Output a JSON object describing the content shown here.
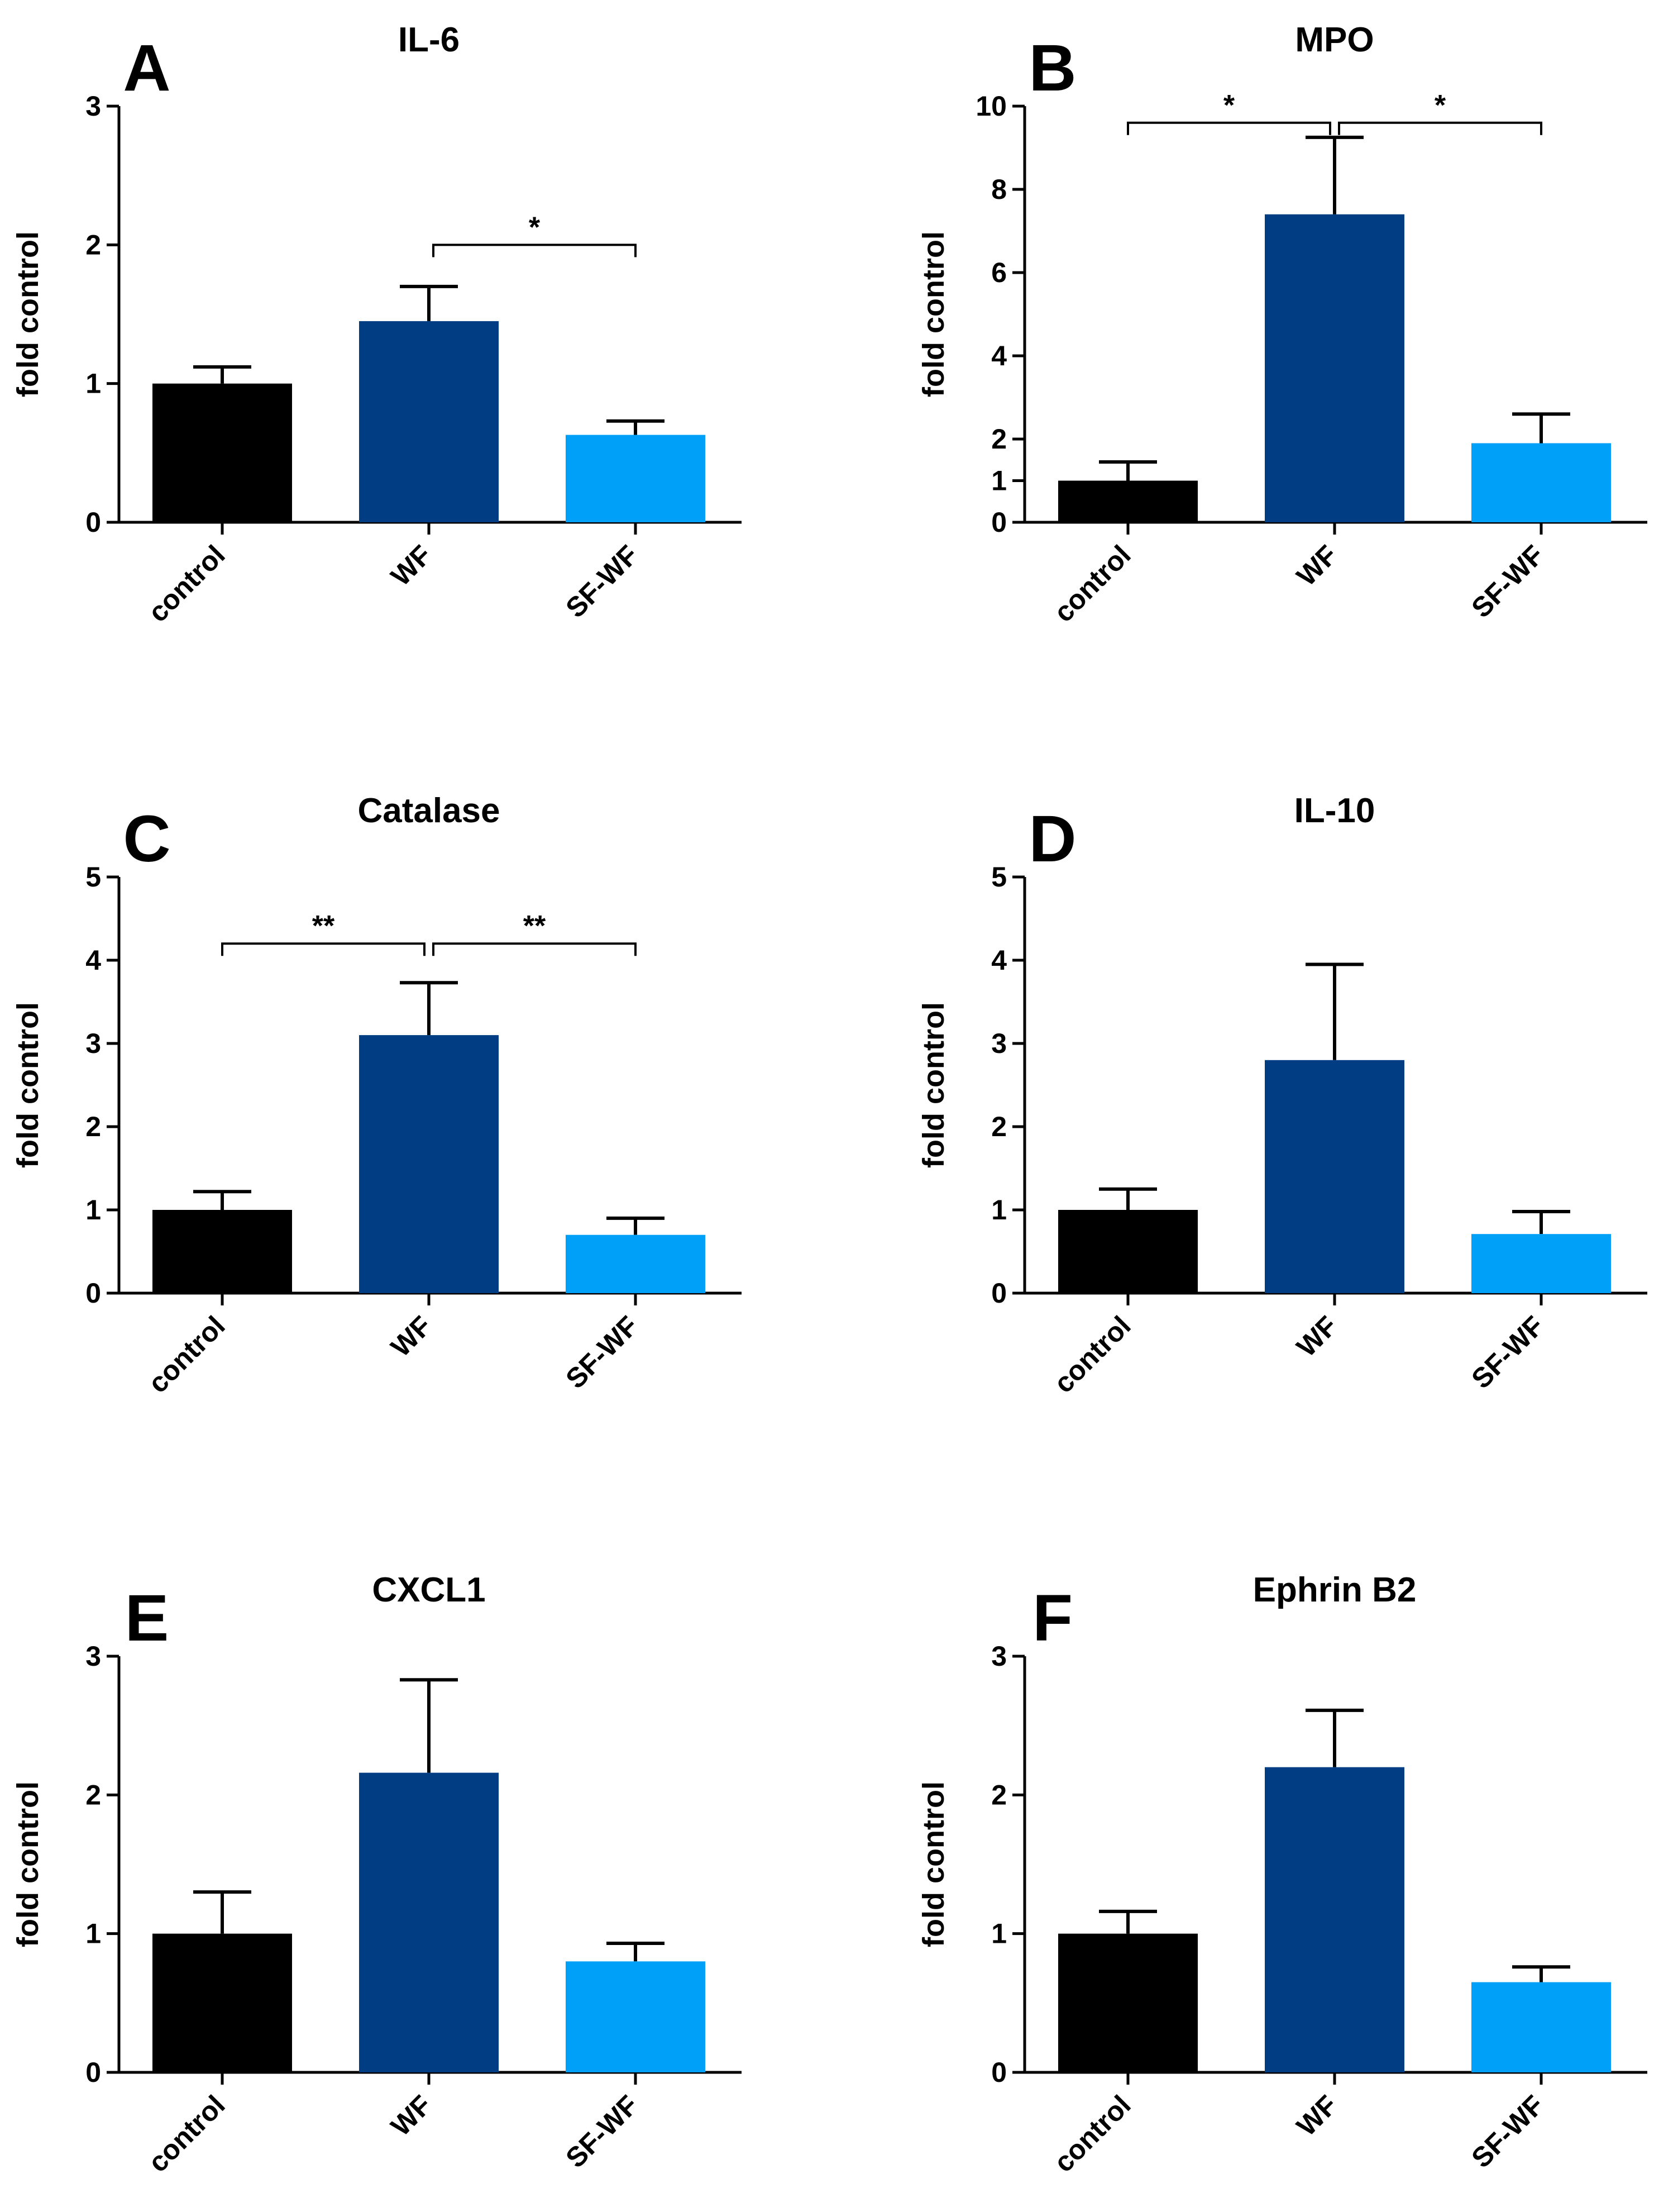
{
  "figure": {
    "y_axis_label": "fold control",
    "colors": {
      "control": "#000000",
      "WF": "#003d82",
      "SF-WF": "#00a0f8"
    }
  },
  "chart_data": [
    {
      "type": "bar",
      "panel": "A",
      "title": "IL-6",
      "ylabel": "fold control",
      "xlabel": "",
      "categories": [
        "control",
        "WF",
        "SF-WF"
      ],
      "values": [
        1.0,
        1.45,
        0.63
      ],
      "errors": [
        0.12,
        0.25,
        0.1
      ],
      "ylim": [
        0,
        3
      ],
      "yticks": [
        0,
        1,
        2,
        3
      ],
      "significance": [
        {
          "from": 1,
          "to": 2,
          "label": "*",
          "y": 2.0
        }
      ]
    },
    {
      "type": "bar",
      "panel": "B",
      "title": "MPO",
      "ylabel": "fold control",
      "xlabel": "",
      "categories": [
        "control",
        "WF",
        "SF-WF"
      ],
      "values": [
        1.0,
        7.4,
        1.9
      ],
      "errors": [
        0.45,
        1.85,
        0.7
      ],
      "ylim": [
        0,
        10
      ],
      "yticks": [
        0,
        1,
        2,
        4,
        6,
        8,
        10
      ],
      "significance": [
        {
          "from": 0,
          "to": 1,
          "label": "*",
          "y": 9.6
        },
        {
          "from": 1,
          "to": 2,
          "label": "*",
          "y": 9.6
        }
      ]
    },
    {
      "type": "bar",
      "panel": "C",
      "title": "Catalase",
      "ylabel": "fold control",
      "xlabel": "",
      "categories": [
        "control",
        "WF",
        "SF-WF"
      ],
      "values": [
        1.0,
        3.1,
        0.7
      ],
      "errors": [
        0.22,
        0.63,
        0.2
      ],
      "ylim": [
        0,
        5
      ],
      "yticks": [
        0,
        1,
        2,
        3,
        4,
        5
      ],
      "significance": [
        {
          "from": 0,
          "to": 1,
          "label": "**",
          "y": 4.2
        },
        {
          "from": 1,
          "to": 2,
          "label": "**",
          "y": 4.2
        }
      ]
    },
    {
      "type": "bar",
      "panel": "D",
      "title": "IL-10",
      "ylabel": "fold control",
      "xlabel": "",
      "categories": [
        "control",
        "WF",
        "SF-WF"
      ],
      "values": [
        1.0,
        2.8,
        0.71
      ],
      "errors": [
        0.25,
        1.15,
        0.27
      ],
      "ylim": [
        0,
        5
      ],
      "yticks": [
        0,
        1,
        2,
        3,
        4,
        5
      ],
      "significance": []
    },
    {
      "type": "bar",
      "panel": "E",
      "title": "CXCL1",
      "ylabel": "fold control",
      "xlabel": "",
      "categories": [
        "control",
        "WF",
        "SF-WF"
      ],
      "values": [
        1.0,
        2.16,
        0.8
      ],
      "errors": [
        0.3,
        0.67,
        0.13
      ],
      "ylim": [
        0,
        3
      ],
      "yticks": [
        0,
        1,
        2,
        3
      ],
      "significance": []
    },
    {
      "type": "bar",
      "panel": "F",
      "title": "Ephrin B2",
      "ylabel": "fold control",
      "xlabel": "",
      "categories": [
        "control",
        "WF",
        "SF-WF"
      ],
      "values": [
        1.0,
        2.2,
        0.65
      ],
      "errors": [
        0.16,
        0.41,
        0.11
      ],
      "ylim": [
        0,
        3
      ],
      "yticks": [
        0,
        1,
        2,
        3
      ],
      "significance": []
    }
  ]
}
